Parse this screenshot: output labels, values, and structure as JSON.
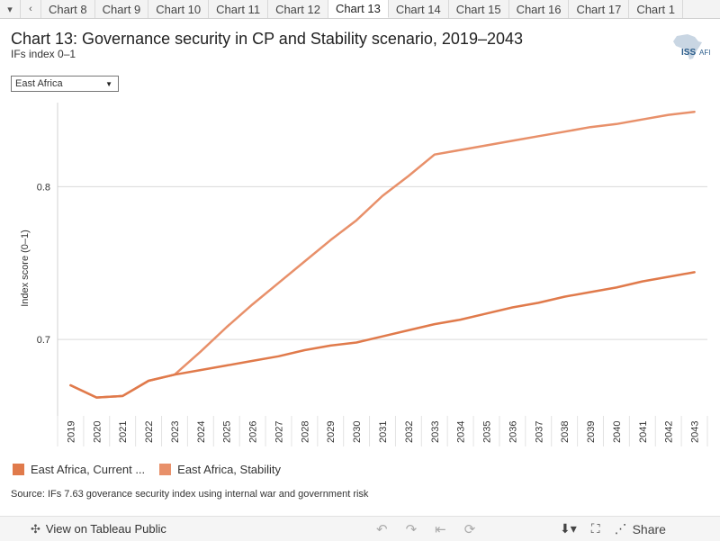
{
  "tabs": {
    "prev_arrow": "‹",
    "items": [
      "Chart 8",
      "Chart 9",
      "Chart 10",
      "Chart 11",
      "Chart 12",
      "Chart 13",
      "Chart 14",
      "Chart 15",
      "Chart 16",
      "Chart 17",
      "Chart 1"
    ],
    "active": "Chart 13"
  },
  "header": {
    "title": "Chart 13: Governance security in CP and Stability scenario, 2019–2043",
    "subtitle": "IFs index 0–1",
    "logo_text": "ISS",
    "logo_suffix": "AFI"
  },
  "filter": {
    "selected": "East Africa"
  },
  "chart_data": {
    "type": "line",
    "title": "Chart 13: Governance security in CP and Stability scenario, 2019–2043",
    "ylabel": "Index score (0–1)",
    "xlabel": "",
    "ylim": [
      0.65,
      0.855
    ],
    "yticks": [
      0.7,
      0.8
    ],
    "ytick_labels": [
      "0.7",
      "0.8"
    ],
    "x": [
      "2019",
      "2020",
      "2021",
      "2022",
      "2023",
      "2024",
      "2025",
      "2026",
      "2027",
      "2028",
      "2029",
      "2030",
      "2031",
      "2032",
      "2033",
      "2034",
      "2035",
      "2036",
      "2037",
      "2038",
      "2039",
      "2040",
      "2041",
      "2042",
      "2043"
    ],
    "series": [
      {
        "name": "East Africa, Current Path",
        "legend_label": "East Africa, Current ...",
        "color": "#e07a4b",
        "values": [
          0.67,
          0.662,
          0.663,
          0.673,
          0.677,
          0.68,
          0.683,
          0.686,
          0.689,
          0.693,
          0.696,
          0.698,
          0.702,
          0.706,
          0.71,
          0.713,
          0.717,
          0.721,
          0.724,
          0.728,
          0.731,
          0.734,
          0.738,
          0.741,
          0.744
        ]
      },
      {
        "name": "East Africa, Stability",
        "legend_label": "East Africa, Stability",
        "color": "#e8906a",
        "values": [
          0.67,
          0.662,
          0.663,
          0.673,
          0.677,
          0.692,
          0.708,
          0.723,
          0.737,
          0.751,
          0.765,
          0.778,
          0.794,
          0.807,
          0.821,
          0.824,
          0.827,
          0.83,
          0.833,
          0.836,
          0.839,
          0.841,
          0.844,
          0.847,
          0.849
        ]
      }
    ]
  },
  "source": "Source: IFs 7.63 goverance security index using internal war and government risk",
  "footer": {
    "view_label": "View on Tableau Public",
    "share_label": "Share",
    "icons": [
      "undo-icon",
      "redo-icon",
      "revert-icon",
      "download-icon",
      "fullscreen-icon",
      "share-icon"
    ]
  },
  "colors": {
    "accent": "#e07a4b",
    "accent_light": "#e8906a",
    "grid": "#d9d9d9"
  }
}
